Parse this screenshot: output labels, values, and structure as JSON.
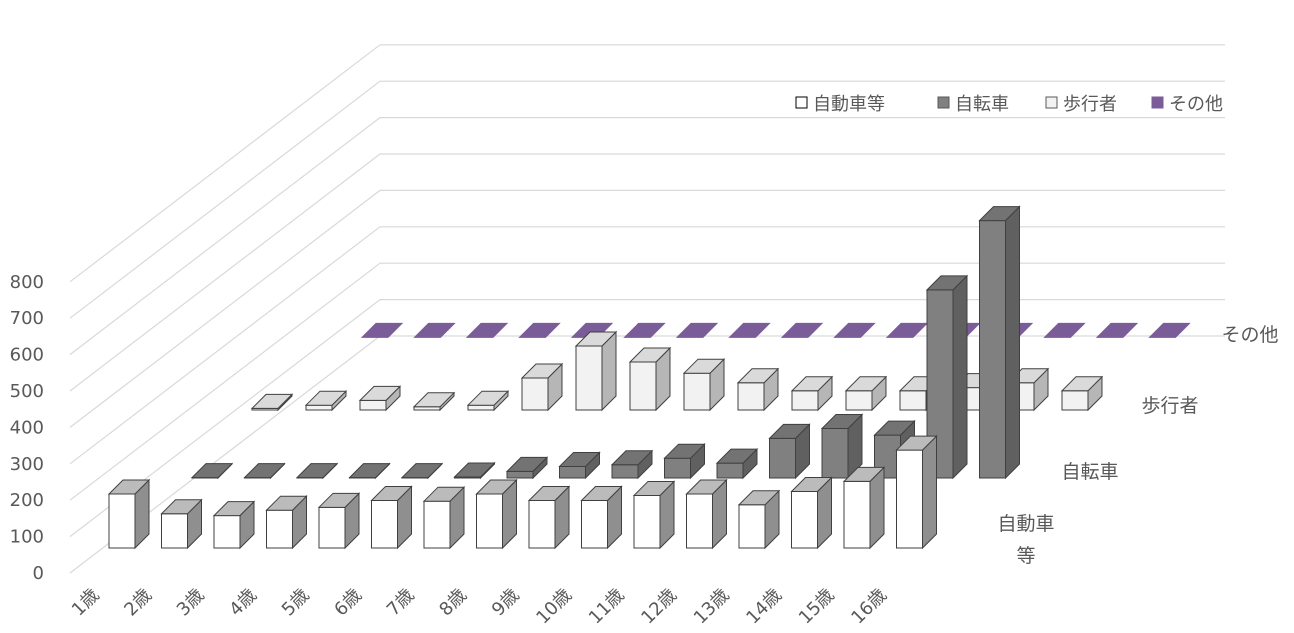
{
  "chart_data": {
    "type": "bar3d",
    "categories": [
      "1歳",
      "2歳",
      "3歳",
      "4歳",
      "5歳",
      "6歳",
      "7歳",
      "8歳",
      "9歳",
      "10歳",
      "11歳",
      "12歳",
      "13歳",
      "14歳",
      "15歳",
      "16歳"
    ],
    "series": [
      {
        "name": "自動車等",
        "color": "#ffffff",
        "values": [
          150,
          95,
          90,
          105,
          113,
          132,
          130,
          150,
          132,
          132,
          146,
          150,
          120,
          157,
          185,
          272
        ]
      },
      {
        "name": "自転車",
        "color": "#808080",
        "values": [
          1,
          1,
          1,
          1,
          1,
          3,
          20,
          35,
          40,
          60,
          45,
          120,
          150,
          130,
          570,
          780
        ]
      },
      {
        "name": "歩行者",
        "color": "#f2f2f2",
        "values": [
          5,
          15,
          30,
          10,
          15,
          100,
          200,
          150,
          115,
          85,
          60,
          60,
          60,
          70,
          85,
          60
        ]
      },
      {
        "name": "その他",
        "color": "#7a5c99",
        "values": [
          2,
          2,
          2,
          2,
          2,
          2,
          2,
          2,
          2,
          2,
          2,
          2,
          2,
          2,
          2,
          2
        ]
      }
    ],
    "ylim": [
      0,
      800
    ],
    "yticks": [
      0,
      100,
      200,
      300,
      400,
      500,
      600,
      700,
      800
    ],
    "grid": true
  }
}
